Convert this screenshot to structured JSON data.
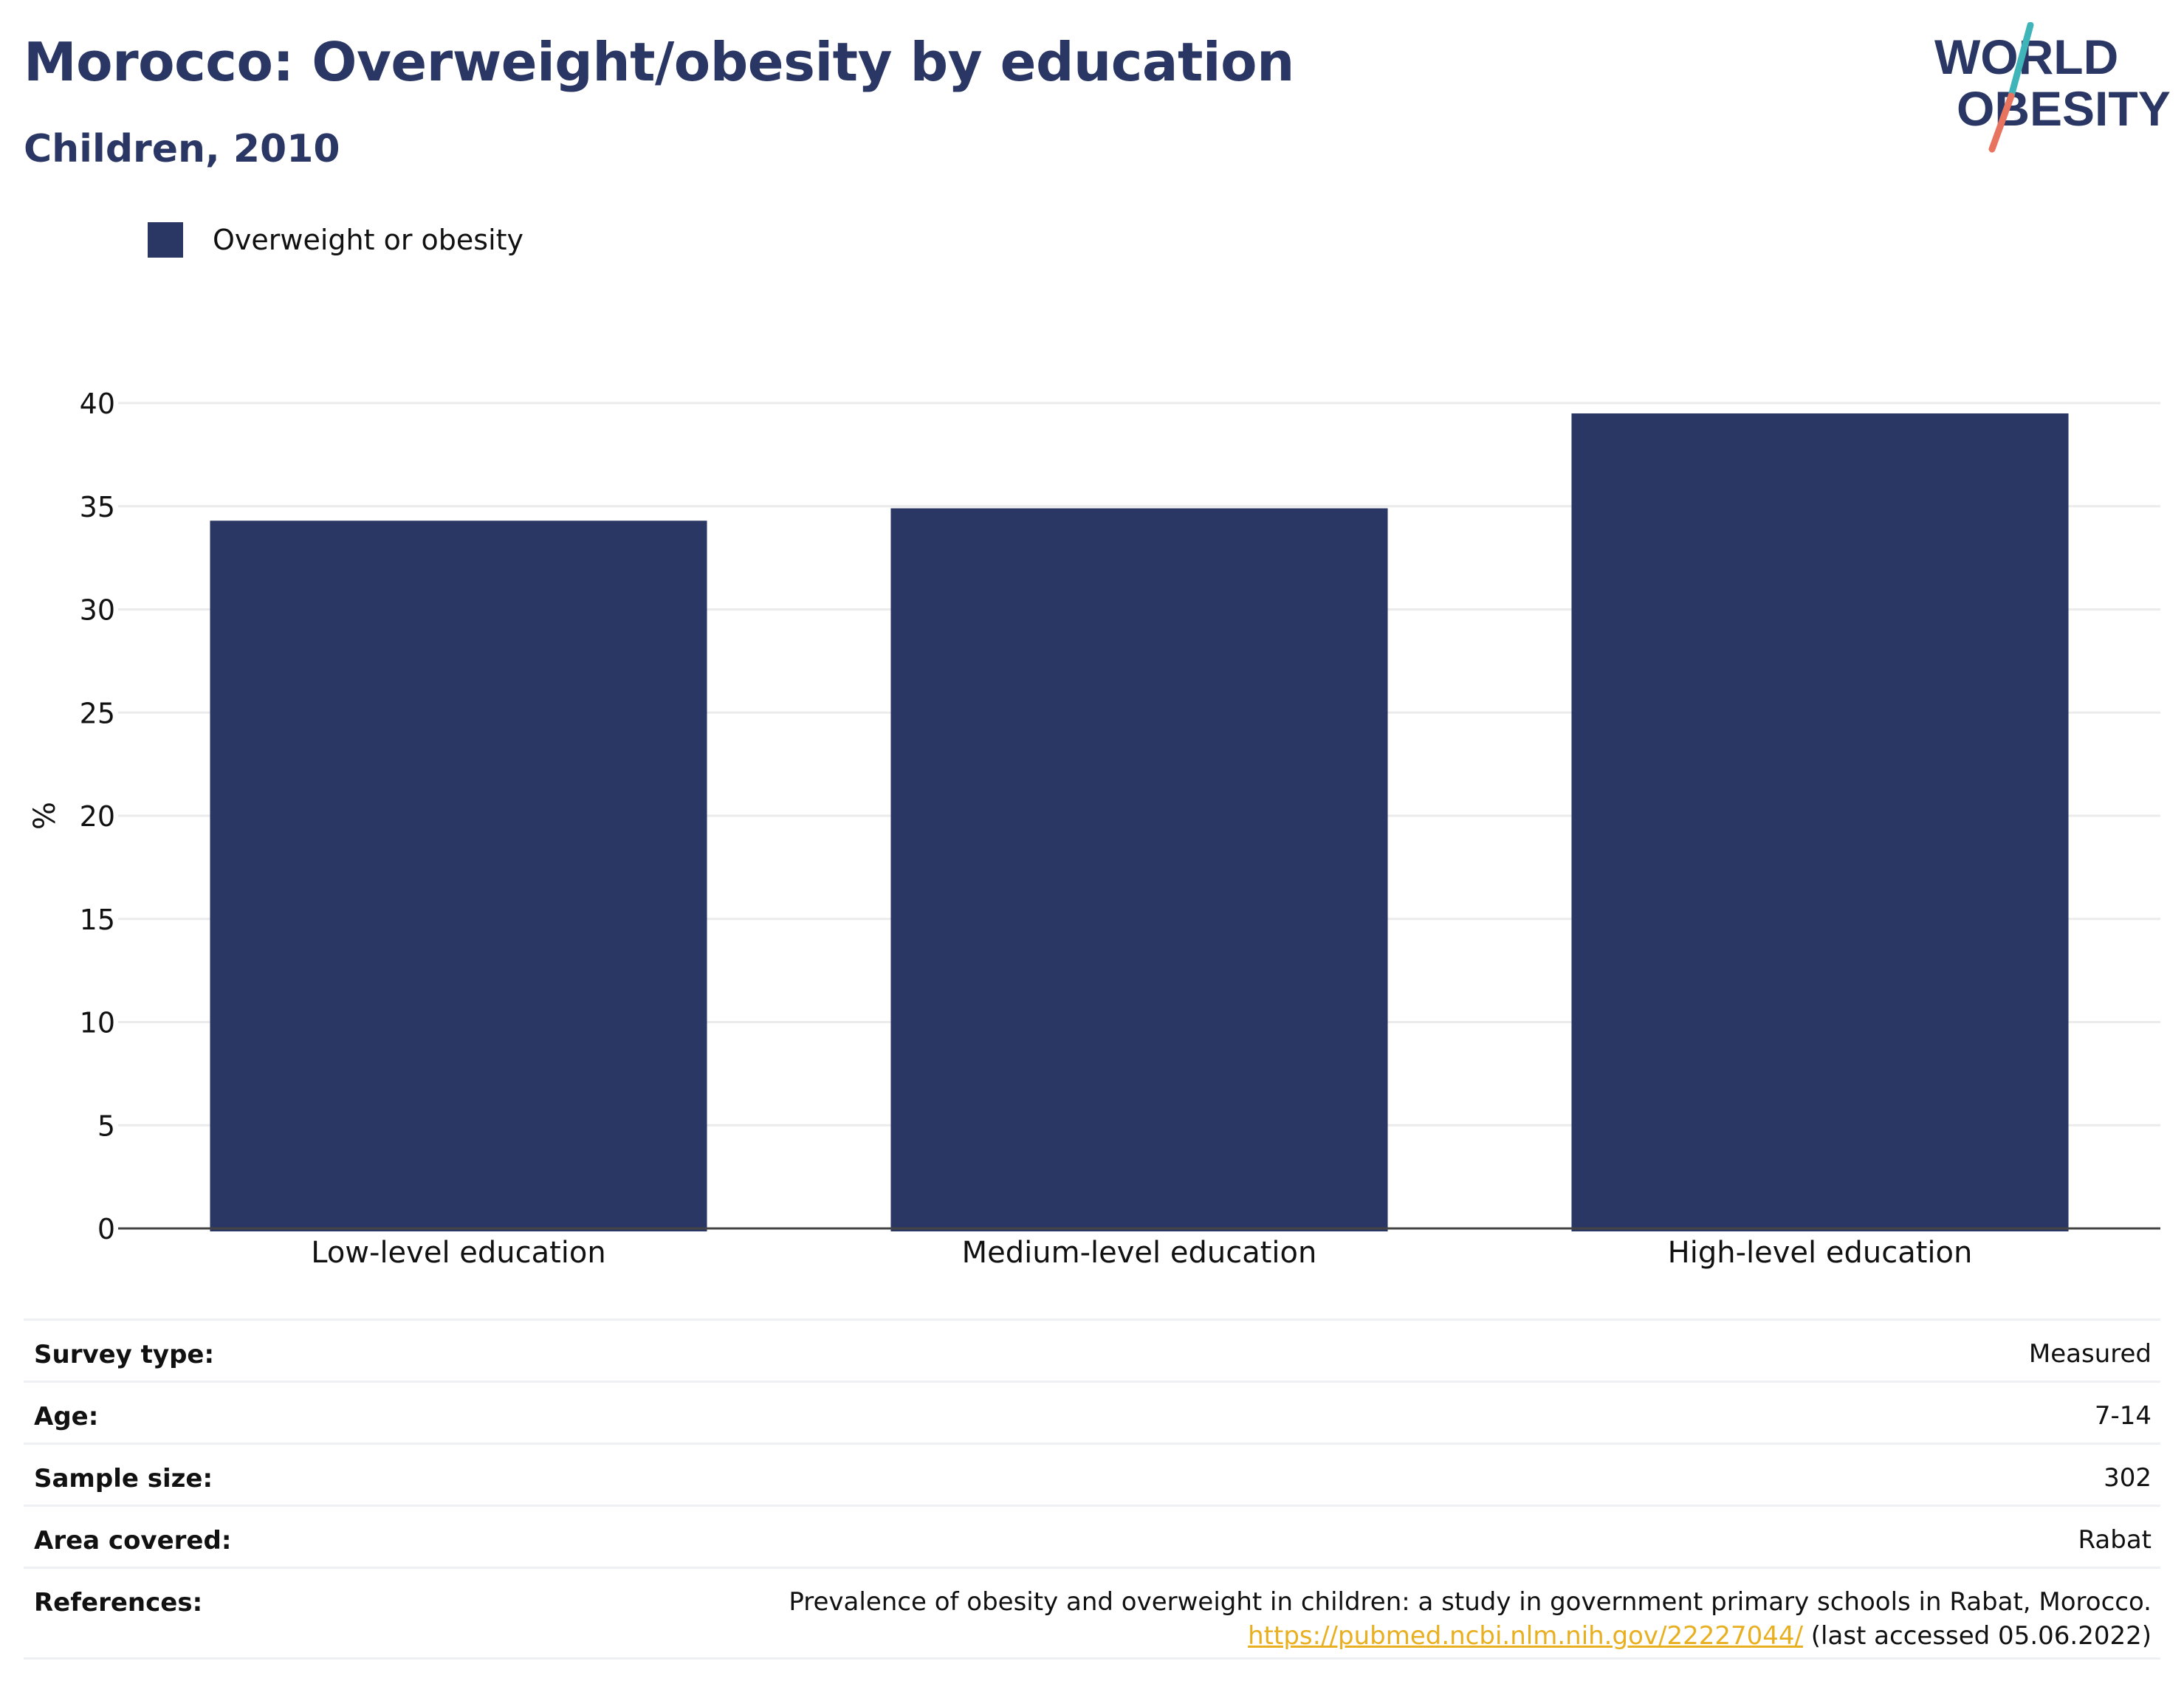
{
  "header": {
    "title": "Morocco: Overweight/obesity by education",
    "subtitle": "Children, 2010"
  },
  "logo": {
    "line1": "WORLD",
    "line2": "OBESITY",
    "slash_colors": [
      "#3fb5b9",
      "#e8735f"
    ]
  },
  "legend": {
    "label": "Overweight or obesity",
    "color": "#2a3663"
  },
  "chart_data": {
    "type": "bar",
    "title": "Morocco: Overweight/obesity by education",
    "subtitle": "Children, 2010",
    "categories": [
      "Low-level education",
      "Medium-level education",
      "High-level education"
    ],
    "series": [
      {
        "name": "Overweight or obesity",
        "values": [
          34.3,
          34.9,
          39.5
        ],
        "color": "#2a3663"
      }
    ],
    "xlabel": "",
    "ylabel": "%",
    "ylim": [
      0,
      40
    ],
    "yticks": [
      0,
      5,
      10,
      15,
      20,
      25,
      30,
      35,
      40
    ],
    "grid": true,
    "legend_position": "top-left"
  },
  "meta": {
    "survey_type": {
      "label": "Survey type:",
      "value": "Measured"
    },
    "age": {
      "label": "Age:",
      "value": "7-14"
    },
    "sample_size": {
      "label": "Sample size:",
      "value": "302"
    },
    "area_covered": {
      "label": "Area covered:",
      "value": "Rabat"
    },
    "references": {
      "label": "References:",
      "text": "Prevalence of obesity and overweight in children: a study in government primary schools in Rabat, Morocco.",
      "url": "https://pubmed.ncbi.nlm.nih.gov/22227044/",
      "accessed": "(last accessed 05.06.2022)"
    }
  }
}
